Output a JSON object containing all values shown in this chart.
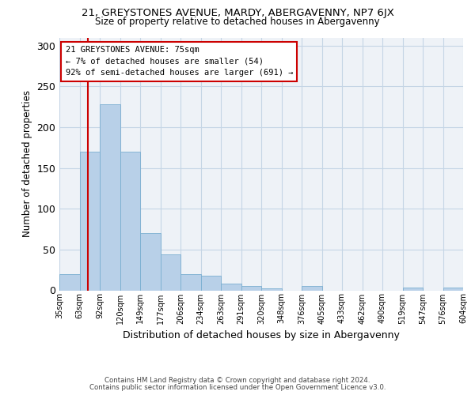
{
  "title1": "21, GREYSTONES AVENUE, MARDY, ABERGAVENNY, NP7 6JX",
  "title2": "Size of property relative to detached houses in Abergavenny",
  "xlabel": "Distribution of detached houses by size in Abergavenny",
  "ylabel": "Number of detached properties",
  "bins": [
    "35sqm",
    "63sqm",
    "92sqm",
    "120sqm",
    "149sqm",
    "177sqm",
    "206sqm",
    "234sqm",
    "263sqm",
    "291sqm",
    "320sqm",
    "348sqm",
    "376sqm",
    "405sqm",
    "433sqm",
    "462sqm",
    "490sqm",
    "519sqm",
    "547sqm",
    "576sqm",
    "604sqm"
  ],
  "values": [
    20,
    170,
    228,
    170,
    70,
    44,
    20,
    18,
    8,
    5,
    2,
    0,
    5,
    0,
    0,
    0,
    0,
    3,
    0,
    3
  ],
  "bar_color": "#b8d0e8",
  "bar_edgecolor": "#7aaed0",
  "bg_color": "#eef2f7",
  "grid_color": "#c5d5e5",
  "property_size": 75,
  "annotation_lines": [
    "21 GREYSTONES AVENUE: 75sqm",
    "← 7% of detached houses are smaller (54)",
    "92% of semi-detached houses are larger (691) →"
  ],
  "annotation_box_color": "white",
  "annotation_box_edgecolor": "#cc0000",
  "footnote1": "Contains HM Land Registry data © Crown copyright and database right 2024.",
  "footnote2": "Contains public sector information licensed under the Open Government Licence v3.0.",
  "ylim": [
    0,
    310
  ],
  "yticks": [
    0,
    50,
    100,
    150,
    200,
    250,
    300
  ],
  "red_line_color": "#cc0000"
}
